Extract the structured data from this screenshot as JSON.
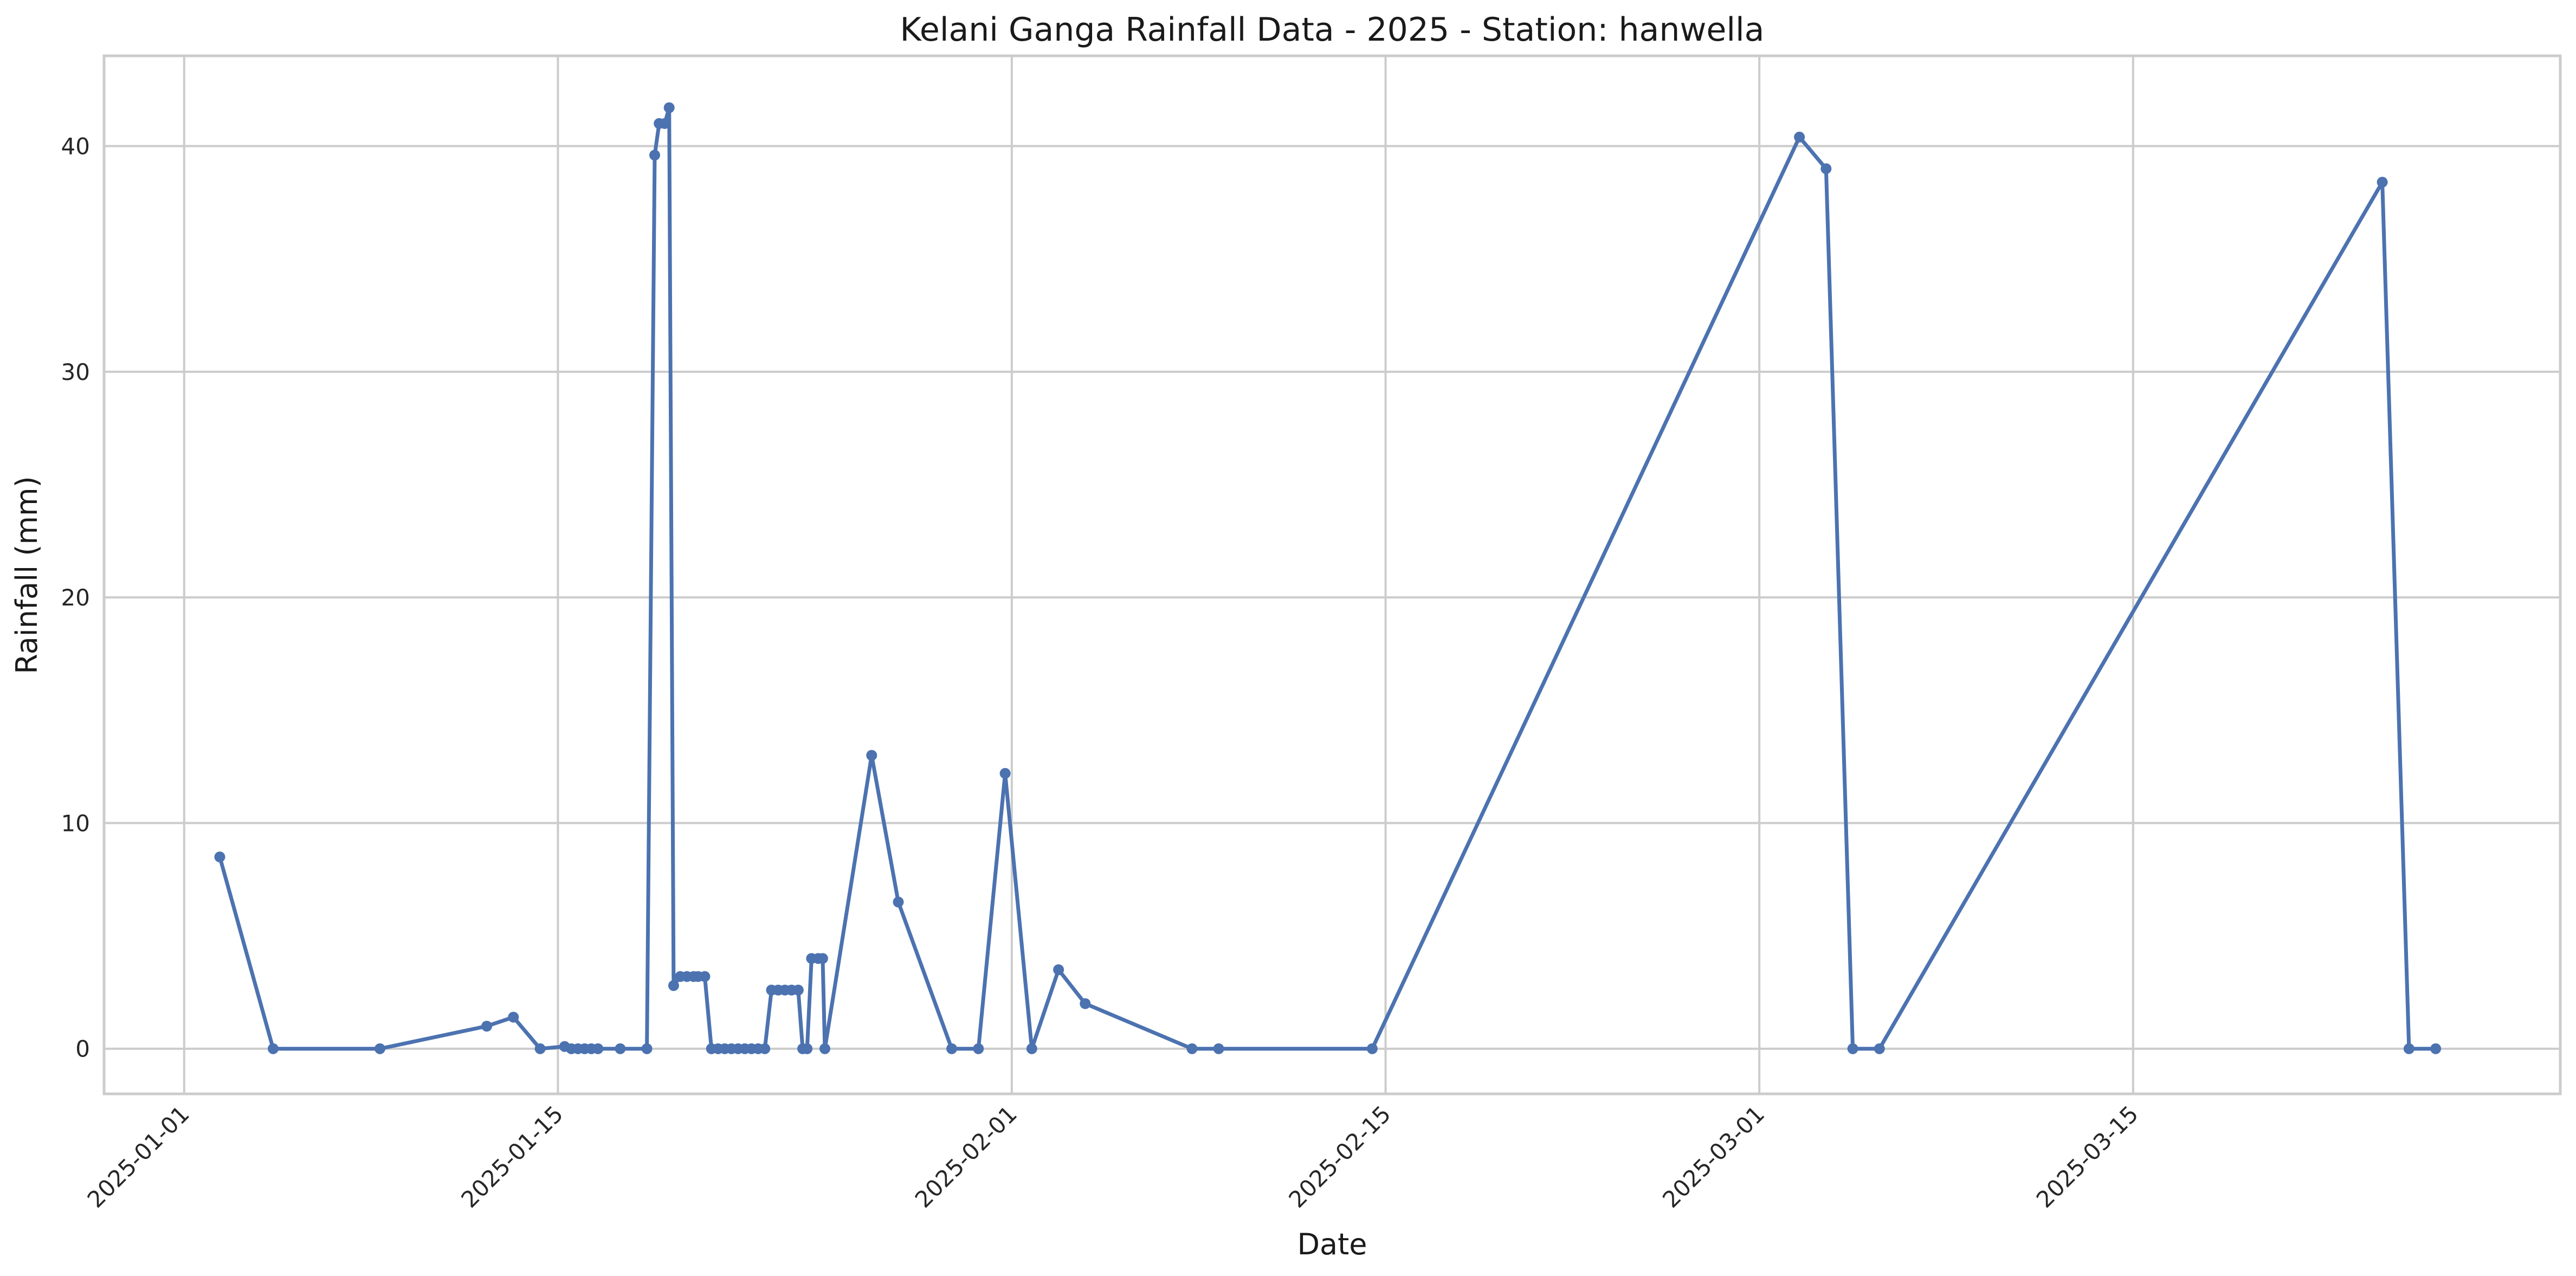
{
  "chart_data": {
    "type": "line",
    "title": "Kelani Ganga Rainfall Data - 2025 - Station: hanwella",
    "xlabel": "Date",
    "ylabel": "Rainfall (mm)",
    "x_tick_labels": [
      "2025-01-01",
      "2025-01-15",
      "2025-02-01",
      "2025-02-15",
      "2025-03-01",
      "2025-03-15"
    ],
    "y_tick_labels": [
      "0",
      "10",
      "20",
      "30",
      "40"
    ],
    "xlim": [
      "2024-12-29",
      "2025-03-31"
    ],
    "ylim": [
      -2,
      44
    ],
    "grid": true,
    "legend": "none",
    "series_color": "#4c72b0",
    "x": [
      "2025-01-02T08:00",
      "2025-01-04T08:00",
      "2025-01-08T08:00",
      "2025-01-12T08:00",
      "2025-01-13T08:00",
      "2025-01-14T08:00",
      "2025-01-15T06:00",
      "2025-01-15T12:00",
      "2025-01-15T18:00",
      "2025-01-16T00:00",
      "2025-01-16T06:00",
      "2025-01-16T12:00",
      "2025-01-17T08:00",
      "2025-01-18T08:00",
      "2025-01-18T15:00",
      "2025-01-18T19:00",
      "2025-01-19T00:00",
      "2025-01-19T04:00",
      "2025-01-19T08:00",
      "2025-01-19T14:00",
      "2025-01-19T20:00",
      "2025-01-20T02:00",
      "2025-01-20T06:00",
      "2025-01-20T12:00",
      "2025-01-20T18:00",
      "2025-01-21T00:00",
      "2025-01-21T06:00",
      "2025-01-21T12:00",
      "2025-01-21T18:00",
      "2025-01-22T00:00",
      "2025-01-22T06:00",
      "2025-01-22T12:00",
      "2025-01-22T18:00",
      "2025-01-23T00:00",
      "2025-01-23T06:00",
      "2025-01-23T12:00",
      "2025-01-23T18:00",
      "2025-01-24T00:00",
      "2025-01-24T04:00",
      "2025-01-24T08:00",
      "2025-01-24T12:00",
      "2025-01-24T18:00",
      "2025-01-24T22:00",
      "2025-01-25T00:00",
      "2025-01-26T18:00",
      "2025-01-27T18:00",
      "2025-01-29T18:00",
      "2025-01-30T18:00",
      "2025-01-31T18:00",
      "2025-02-01T18:00",
      "2025-02-02T18:00",
      "2025-02-03T18:00",
      "2025-02-07T18:00",
      "2025-02-08T18:00",
      "2025-02-14T12:00",
      "2025-03-02T12:00",
      "2025-03-03T12:00",
      "2025-03-04T12:00",
      "2025-03-05T12:00",
      "2025-03-24T08:00",
      "2025-03-25T08:00",
      "2025-03-26T08:00"
    ],
    "values": [
      8.5,
      0.0,
      0.0,
      1.0,
      1.4,
      0.0,
      0.1,
      0.0,
      0.0,
      0.0,
      0.0,
      0.0,
      0.0,
      0.0,
      39.6,
      41.0,
      41.0,
      41.7,
      2.8,
      3.2,
      3.2,
      3.2,
      3.2,
      3.2,
      0.0,
      0.0,
      0.0,
      0.0,
      0.0,
      0.0,
      0.0,
      0.0,
      0.0,
      2.6,
      2.6,
      2.6,
      2.6,
      2.6,
      0.0,
      0.0,
      4.0,
      4.0,
      4.0,
      0.0,
      13.0,
      6.5,
      0.0,
      0.0,
      12.2,
      0.0,
      3.5,
      2.0,
      0.0,
      0.0,
      0.0,
      40.4,
      39.0,
      0.0,
      0.0,
      38.4,
      0.0,
      0.0
    ]
  }
}
